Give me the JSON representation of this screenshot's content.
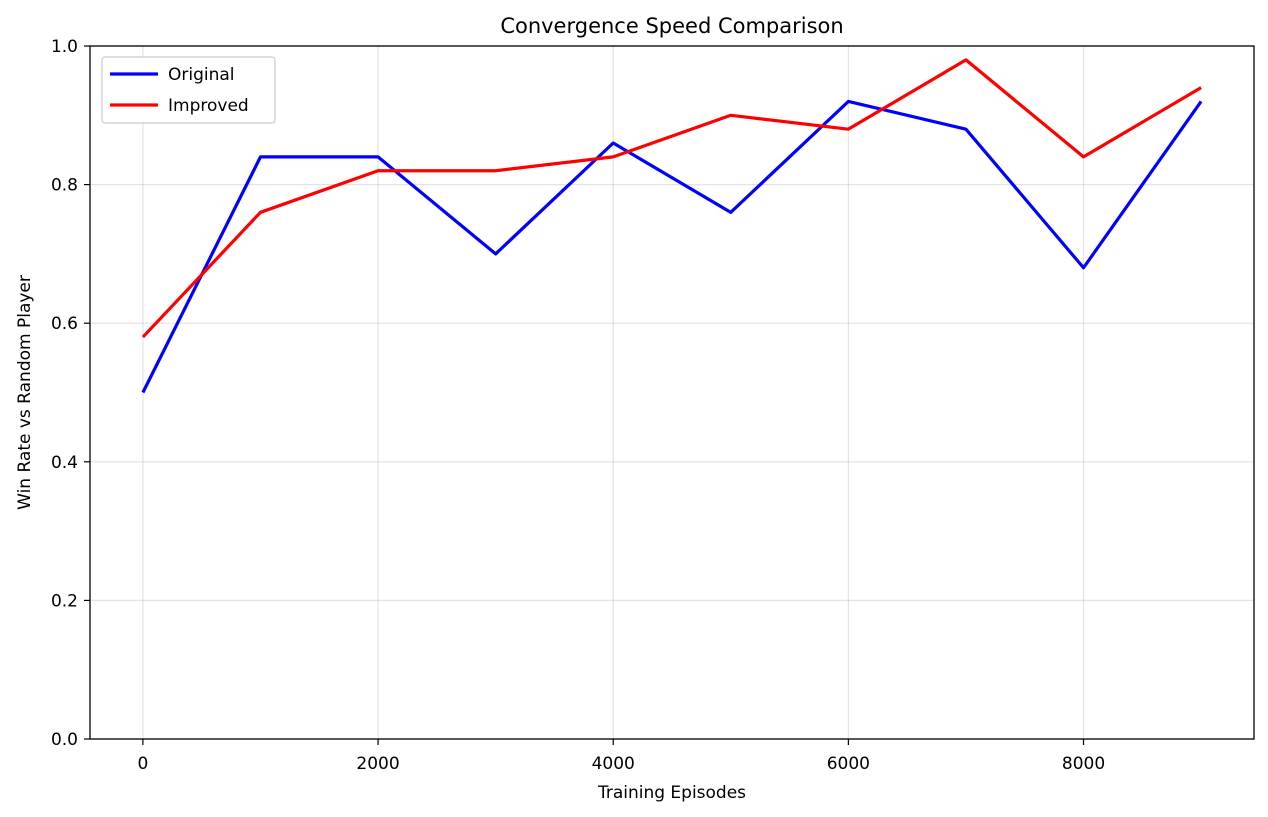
{
  "chart_data": {
    "type": "line",
    "title": "Convergence Speed Comparison",
    "xlabel": "Training Episodes",
    "ylabel": "Win Rate vs Random Player",
    "xlim": [
      -450,
      9450
    ],
    "ylim": [
      0.0,
      1.0
    ],
    "xticks": [
      0,
      2000,
      4000,
      6000,
      8000
    ],
    "yticks": [
      0.0,
      0.2,
      0.4,
      0.6,
      0.8,
      1.0
    ],
    "xtick_labels": [
      "0",
      "2000",
      "4000",
      "6000",
      "8000"
    ],
    "ytick_labels": [
      "0.0",
      "0.2",
      "0.4",
      "0.6",
      "0.8",
      "1.0"
    ],
    "grid": true,
    "legend_position": "top-left",
    "x": [
      0,
      1000,
      2000,
      3000,
      4000,
      5000,
      6000,
      7000,
      8000,
      9000
    ],
    "series": [
      {
        "name": "Original",
        "color": "#0000ff",
        "values": [
          0.5,
          0.84,
          0.84,
          0.7,
          0.86,
          0.76,
          0.92,
          0.88,
          0.68,
          0.92
        ]
      },
      {
        "name": "Improved",
        "color": "#ff0000",
        "values": [
          0.58,
          0.76,
          0.82,
          0.82,
          0.84,
          0.9,
          0.88,
          0.98,
          0.84,
          0.94
        ]
      }
    ]
  }
}
